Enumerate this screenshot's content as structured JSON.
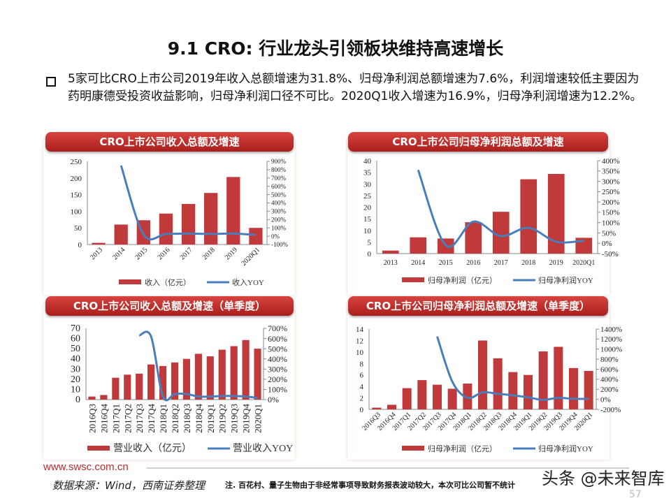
{
  "title": "9.1 CRO: 行业龙头引领板块维持高速增长",
  "summary": "5家可比CRO上市公司2019年收入总额增速为31.8%、归母净利润总额增速为7.6%，利润增速较低主要因为药明康德受投资收益影响，归母净利润口径不可比。2020Q1收入增速为16.9%，归母净利润增速为12.2%。",
  "colors": {
    "bar": "#c0393b",
    "line": "#4a7ebb",
    "header": "#b8272a",
    "site": "#c0282a"
  },
  "footer": {
    "site": "www.swsc.com.cn",
    "source": "数据来源：Wind，西南证券整理",
    "note": "注. 百花村、量子生物由于非经常事项导致财务报表波动较大，本次可比公司暂不统计",
    "watermark": "头条 @未来智库",
    "page": "57"
  },
  "chart_data": [
    {
      "type": "bar+line",
      "title": "CRO上市公司收入总额及增速",
      "categories": [
        "2013",
        "2014",
        "2015",
        "2016",
        "2017",
        "2018",
        "2019",
        "2020Q1"
      ],
      "series": [
        {
          "name": "收入（亿元）",
          "type": "bar",
          "axis": "left",
          "values": [
            5,
            60,
            73,
            93,
            122,
            155,
            203,
            50
          ]
        },
        {
          "name": "收入YOY",
          "type": "line",
          "axis": "right",
          "values": [
            null,
            850,
            22,
            27,
            31,
            27,
            31.8,
            16.9
          ]
        }
      ],
      "ylim": [
        0,
        250
      ],
      "yticks": [
        0,
        50,
        100,
        150,
        200,
        250
      ],
      "y2lim": [
        -100,
        900
      ],
      "y2ticks": [
        -100,
        0,
        100,
        200,
        300,
        400,
        500,
        600,
        700,
        800,
        900
      ],
      "y2unit": "%",
      "xlabel_rotation": "diagonal",
      "legend": "bottom"
    },
    {
      "type": "bar+line",
      "title": "CRO上市公司归母净利润总额及增速",
      "categories": [
        "2013",
        "2014",
        "2015",
        "2016",
        "2017",
        "2018",
        "2019",
        "2020Q1"
      ],
      "series": [
        {
          "name": "归母净利润（亿元）",
          "type": "bar",
          "axis": "left",
          "values": [
            1.3,
            7,
            6.5,
            13.5,
            18,
            32,
            34.3,
            6.8
          ]
        },
        {
          "name": "归母净利润YOY",
          "type": "line",
          "axis": "right",
          "values": [
            null,
            355,
            -10,
            105,
            35,
            75,
            7.6,
            12.2
          ]
        }
      ],
      "ylim": [
        0,
        40
      ],
      "yticks": [
        0,
        5,
        10,
        15,
        20,
        25,
        30,
        35,
        40
      ],
      "y2lim": [
        -50,
        400
      ],
      "y2ticks": [
        -50,
        0,
        50,
        100,
        150,
        200,
        250,
        300,
        350,
        400
      ],
      "y2unit": "%",
      "xlabel_rotation": "horizontal",
      "legend": "bottom"
    },
    {
      "type": "bar+line",
      "title": "CRO上市公司收入总额及增速（单季度）",
      "categories": [
        "2016Q3",
        "2016Q4",
        "2017Q1",
        "2017Q2",
        "2017Q3",
        "2017Q4",
        "2018Q1",
        "2018Q2",
        "2018Q3",
        "2018Q4",
        "2019Q1",
        "2019Q2",
        "2019Q3",
        "2019Q4",
        "2020Q1"
      ],
      "series": [
        {
          "name": "营业收入（亿元）",
          "type": "bar",
          "axis": "left",
          "values": [
            3,
            4.5,
            21.5,
            24.5,
            25.5,
            34.5,
            33,
            36.5,
            40,
            45,
            42.5,
            49,
            52.5,
            58.5,
            50
          ]
        },
        {
          "name": "营业收入YOY",
          "type": "line",
          "axis": "right",
          "values": [
            null,
            null,
            null,
            null,
            630,
            620,
            30,
            55,
            55,
            30,
            30,
            35,
            35,
            30,
            17
          ]
        }
      ],
      "ylim": [
        0,
        70
      ],
      "yticks": [
        0,
        10,
        20,
        30,
        40,
        50,
        60,
        70
      ],
      "y2lim": [
        0,
        700
      ],
      "y2ticks": [
        0,
        100,
        200,
        300,
        400,
        500,
        600,
        700
      ],
      "y2unit": "%",
      "xlabel_rotation": "vertical",
      "legend": "bottom"
    },
    {
      "type": "bar+line",
      "title": "CRO上市公司归母净利润总额及增速（单季度）",
      "categories": [
        "2016Q3",
        "2016Q4",
        "2017Q1",
        "2017Q2",
        "2017Q3",
        "2017Q4",
        "2018Q1",
        "2018Q2",
        "2018Q3",
        "2018Q4",
        "2019Q1",
        "2019Q2",
        "2019Q3",
        "2019Q4",
        "2020Q1"
      ],
      "series": [
        {
          "name": "归母净利润（亿元）",
          "type": "bar",
          "axis": "left",
          "values": [
            0.3,
            0.8,
            3.7,
            5.1,
            4.3,
            3.6,
            4.5,
            12,
            8.9,
            6.5,
            6.0,
            10.1,
            10.9,
            7.2,
            6.7
          ]
        },
        {
          "name": "归母净利润YOY",
          "type": "line",
          "axis": "right",
          "values": [
            null,
            null,
            null,
            null,
            1250,
            350,
            30,
            140,
            110,
            80,
            40,
            -10,
            30,
            10,
            12
          ]
        }
      ],
      "ylim": [
        0,
        14
      ],
      "yticks": [
        0,
        2,
        4,
        6,
        8,
        10,
        12,
        14
      ],
      "y2lim": [
        -200,
        1400
      ],
      "y2ticks": [
        -200,
        0,
        200,
        400,
        600,
        800,
        1000,
        1200,
        1400
      ],
      "y2unit": "%",
      "xlabel_rotation": "diagonal",
      "legend": "bottom"
    }
  ]
}
